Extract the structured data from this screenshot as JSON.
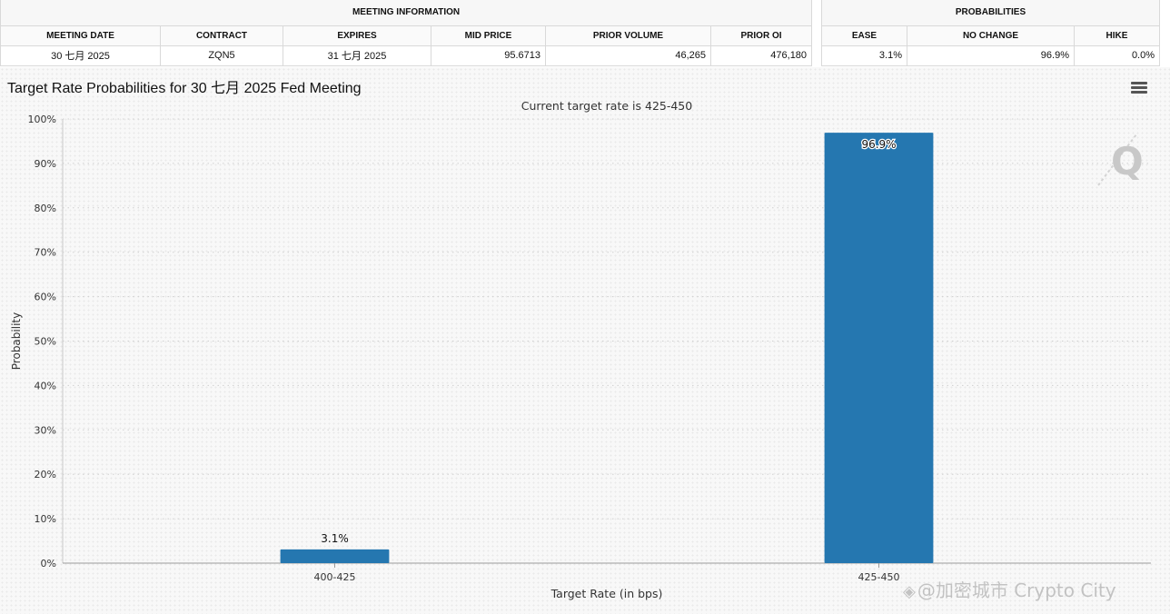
{
  "meeting_table": {
    "group_label": "MEETING INFORMATION",
    "headers": [
      "MEETING DATE",
      "CONTRACT",
      "EXPIRES",
      "MID PRICE",
      "PRIOR VOLUME",
      "PRIOR OI"
    ],
    "row": [
      "30 七月 2025",
      "ZQN5",
      "31 七月 2025",
      "95.6713",
      "46,265",
      "476,180"
    ]
  },
  "prob_table": {
    "group_label": "PROBABILITIES",
    "headers": [
      "EASE",
      "NO CHANGE",
      "HIKE"
    ],
    "row": [
      "3.1%",
      "96.9%",
      "0.0%"
    ]
  },
  "watermark": "@加密城市 Crypto City",
  "icons": {
    "menu": "hamburger-menu-icon",
    "logo": "q-logo-icon",
    "watermark": "binance-logo-icon"
  },
  "chart_data": {
    "type": "bar",
    "title": "Target Rate Probabilities for 30 七月 2025 Fed Meeting",
    "subtitle": "Current target rate is 425-450",
    "categories": [
      "400-425",
      "425-450"
    ],
    "values": [
      3.1,
      96.9
    ],
    "data_labels": [
      "3.1%",
      "96.9%"
    ],
    "xlabel": "Target Rate (in bps)",
    "ylabel": "Probability",
    "ylim": [
      0,
      100
    ],
    "ytick_labels": [
      "0%",
      "10%",
      "20%",
      "30%",
      "40%",
      "50%",
      "60%",
      "70%",
      "80%",
      "90%",
      "100%"
    ],
    "bar_color": "#2577b0",
    "grid": true,
    "legend": "none"
  }
}
